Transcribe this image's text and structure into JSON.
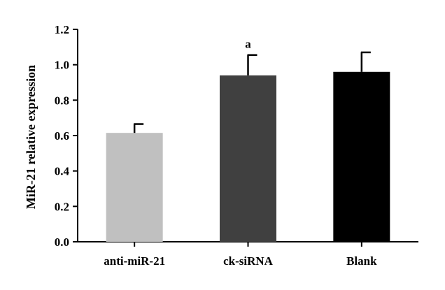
{
  "chart_data": {
    "type": "bar",
    "title": "",
    "xlabel": "",
    "ylabel": "MiR-21 relative expression",
    "ylim": [
      0,
      1.2
    ],
    "yticks": [
      "0.0",
      "0.2",
      "0.4",
      "0.6",
      "0.8",
      "1.0",
      "1.2"
    ],
    "categories": [
      "anti-miR-21",
      "ck-siRNA",
      "Blank"
    ],
    "values": [
      0.615,
      0.94,
      0.96
    ],
    "errors": [
      0.05,
      0.115,
      0.11
    ],
    "annotations": [
      "",
      "a",
      ""
    ],
    "colors": [
      "#c0c0c0",
      "#404040",
      "#000000"
    ],
    "grid": false
  }
}
